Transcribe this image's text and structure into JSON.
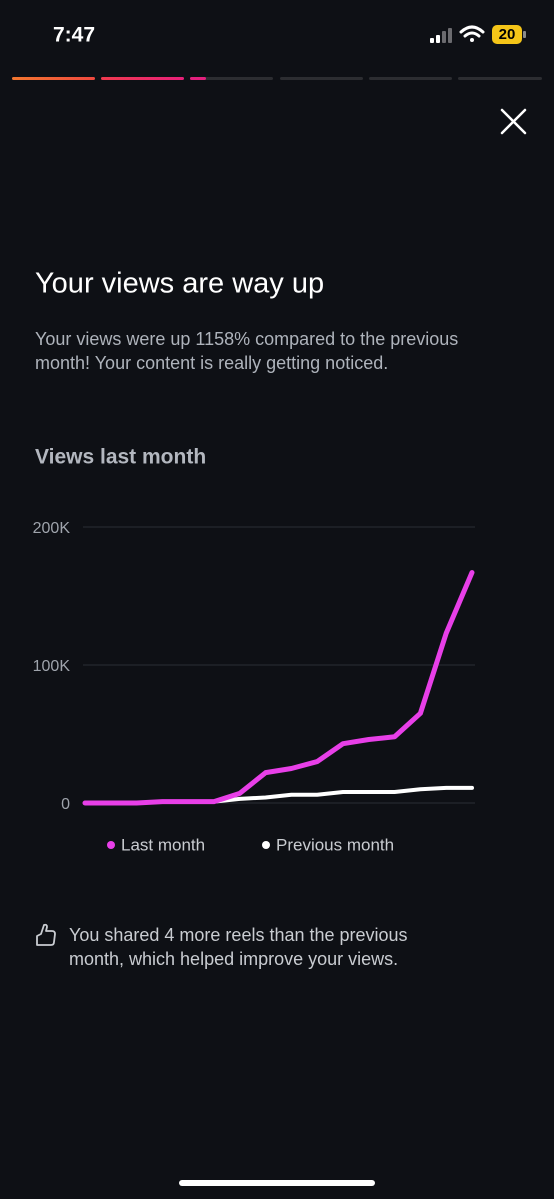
{
  "status_bar": {
    "time": "7:47",
    "battery": "20"
  },
  "title": "Your views are way up",
  "description": [
    "Your views were up 1158% compared to the previous",
    "month! Your content is really getting noticed."
  ],
  "chart_data": {
    "type": "line",
    "title": "Views last month",
    "categories": [
      null,
      null,
      null,
      null,
      null,
      null,
      null,
      null,
      null,
      null,
      null,
      null,
      null,
      null,
      null,
      null
    ],
    "series": [
      {
        "name": "Last month",
        "color": "#e83fe8",
        "values": [
          0,
          0,
          0,
          1000,
          1000,
          1000,
          7000,
          22000,
          25000,
          30000,
          43000,
          46000,
          48000,
          65000,
          123000,
          167000
        ]
      },
      {
        "name": "Previous month",
        "color": "#ffffff",
        "values": [
          0,
          0,
          0,
          1000,
          1000,
          1000,
          3000,
          4000,
          6000,
          6000,
          8000,
          8000,
          8000,
          10000,
          11000,
          11000
        ]
      }
    ],
    "ylim": [
      0,
      200000
    ],
    "yticks": [
      0,
      {
        "value": 100000,
        "label": "100K"
      },
      {
        "value": 200000,
        "label": "200K"
      }
    ],
    "grid": true
  },
  "footnote": [
    "You shared 4 more reels than the previous",
    "month, which helped improve your views."
  ]
}
